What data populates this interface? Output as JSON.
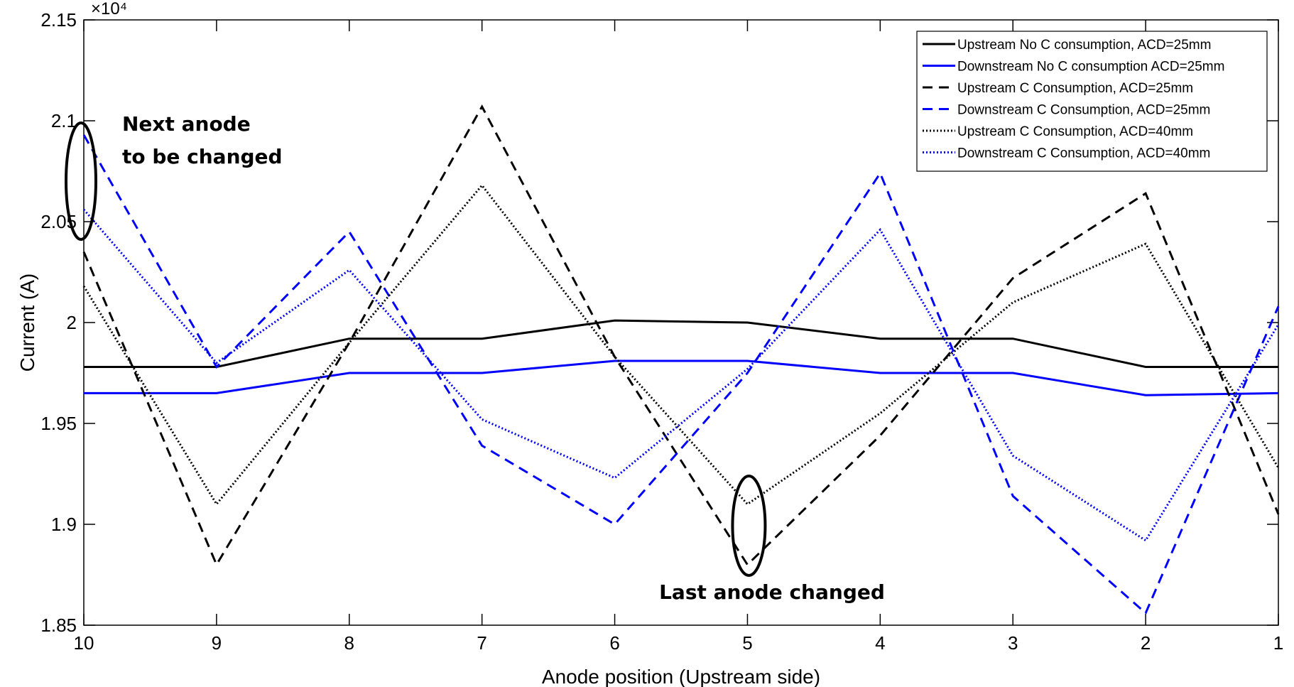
{
  "chart_data": {
    "type": "line",
    "title": "",
    "xlabel": "Anode position (Upstream side)",
    "ylabel": "Current (A)",
    "y_multiplier_label": "×10⁴",
    "x": [
      10,
      9,
      8,
      7,
      6,
      5,
      4,
      3,
      2,
      1
    ],
    "x_reversed": true,
    "xlim": [
      10,
      1
    ],
    "ylim": [
      1.85,
      2.15
    ],
    "yticks": [
      "1.85",
      "1.9",
      "1.95",
      "2",
      "2.05",
      "2.1",
      "2.15"
    ],
    "ytick_values": [
      1.85,
      1.9,
      1.95,
      2.0,
      2.05,
      2.1,
      2.15
    ],
    "grid": false,
    "legend_position": "top-right",
    "series": [
      {
        "name": "Upstream No C consumption, ACD=25mm",
        "color": "#000000",
        "style": "solid",
        "values": [
          1.978,
          1.978,
          1.992,
          1.992,
          2.001,
          2.0,
          1.992,
          1.992,
          1.978,
          1.978
        ]
      },
      {
        "name": "Downstream No C consumption ACD=25mm",
        "color": "#0000ff",
        "style": "solid",
        "values": [
          1.965,
          1.965,
          1.975,
          1.975,
          1.981,
          1.981,
          1.975,
          1.975,
          1.964,
          1.965
        ]
      },
      {
        "name": "Upstream C Consumption, ACD=25mm",
        "color": "#000000",
        "style": "dashed",
        "values": [
          2.035,
          1.88,
          1.99,
          2.107,
          1.983,
          1.88,
          1.944,
          2.022,
          2.064,
          1.905
        ]
      },
      {
        "name": "Downstream C Consumption, ACD=25mm",
        "color": "#0000ff",
        "style": "dashed",
        "values": [
          2.093,
          1.978,
          2.045,
          1.939,
          1.9,
          1.975,
          2.074,
          1.914,
          1.856,
          2.008
        ]
      },
      {
        "name": "Upstream C Consumption, ACD=40mm",
        "color": "#000000",
        "style": "dotted",
        "values": [
          2.018,
          1.91,
          1.99,
          2.068,
          1.983,
          1.91,
          1.955,
          2.01,
          2.039,
          1.928
        ]
      },
      {
        "name": "Downstream C Consumption, ACD=40mm",
        "color": "#0000ff",
        "style": "dotted",
        "values": [
          2.056,
          1.98,
          2.026,
          1.952,
          1.923,
          1.977,
          2.046,
          1.934,
          1.892,
          1.999
        ]
      }
    ],
    "annotations": [
      {
        "text_lines": [
          "Next anode",
          "to be changed"
        ],
        "target_x": 10
      },
      {
        "text_lines": [
          "Last anode changed"
        ],
        "target_x": 5
      }
    ]
  }
}
